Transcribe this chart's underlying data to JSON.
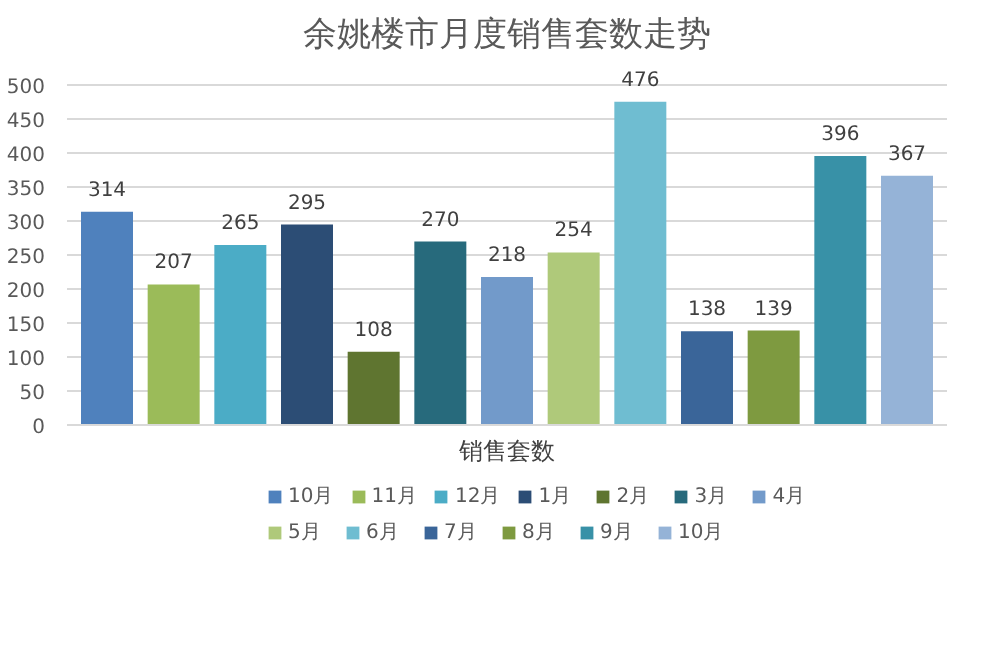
{
  "chart_data": {
    "type": "bar",
    "title": "余姚楼市月度销售套数走势",
    "xlabel": "销售套数",
    "categories": [
      null,
      null,
      null,
      null,
      null,
      null,
      null,
      null,
      null,
      null,
      null,
      null,
      null
    ],
    "series": [
      {
        "name": "10月",
        "color": "#4f81bd",
        "values": [
          314,
          null,
          null,
          null,
          null,
          null,
          null,
          null,
          null,
          null,
          null,
          null,
          null
        ]
      },
      {
        "name": "11月",
        "color": "#9bbb59",
        "values": [
          null,
          207,
          null,
          null,
          null,
          null,
          null,
          null,
          null,
          null,
          null,
          null,
          null
        ]
      },
      {
        "name": "12月",
        "color": "#4bacc6",
        "values": [
          null,
          null,
          265,
          null,
          null,
          null,
          null,
          null,
          null,
          null,
          null,
          null,
          null
        ]
      },
      {
        "name": "1月",
        "color": "#2c4d75",
        "values": [
          null,
          null,
          null,
          295,
          null,
          null,
          null,
          null,
          null,
          null,
          null,
          null,
          null
        ]
      },
      {
        "name": "2月",
        "color": "#5f7530",
        "values": [
          null,
          null,
          null,
          null,
          108,
          null,
          null,
          null,
          null,
          null,
          null,
          null,
          null
        ]
      },
      {
        "name": "3月",
        "color": "#276a7c",
        "values": [
          null,
          null,
          null,
          null,
          null,
          270,
          null,
          null,
          null,
          null,
          null,
          null,
          null
        ]
      },
      {
        "name": "4月",
        "color": "#729aca",
        "values": [
          null,
          null,
          null,
          null,
          null,
          null,
          218,
          null,
          null,
          null,
          null,
          null,
          null
        ]
      },
      {
        "name": "5月",
        "color": "#afc97a",
        "values": [
          null,
          null,
          null,
          null,
          null,
          null,
          null,
          254,
          null,
          null,
          null,
          null,
          null
        ]
      },
      {
        "name": "6月",
        "color": "#6fbdd1",
        "values": [
          null,
          null,
          null,
          null,
          null,
          null,
          null,
          null,
          476,
          null,
          null,
          null,
          null
        ]
      },
      {
        "name": "7月",
        "color": "#3a6599",
        "values": [
          null,
          null,
          null,
          null,
          null,
          null,
          null,
          null,
          null,
          138,
          null,
          null,
          null
        ]
      },
      {
        "name": "8月",
        "color": "#7e9a40",
        "values": [
          null,
          null,
          null,
          null,
          null,
          null,
          null,
          null,
          null,
          null,
          139,
          null,
          null
        ]
      },
      {
        "name": "9月",
        "color": "#3891a7",
        "values": [
          null,
          null,
          null,
          null,
          null,
          null,
          null,
          null,
          null,
          null,
          null,
          396,
          null
        ]
      },
      {
        "name": "10月",
        "color": "#95b3d7",
        "values": [
          null,
          null,
          null,
          null,
          null,
          null,
          null,
          null,
          null,
          null,
          null,
          null,
          367
        ]
      }
    ],
    "ylim": [
      0,
      500
    ],
    "yticks": [
      0,
      50,
      100,
      150,
      200,
      250,
      300,
      350,
      400,
      450,
      500
    ],
    "grid": "y",
    "legend": "bottom",
    "data_labels": true
  }
}
